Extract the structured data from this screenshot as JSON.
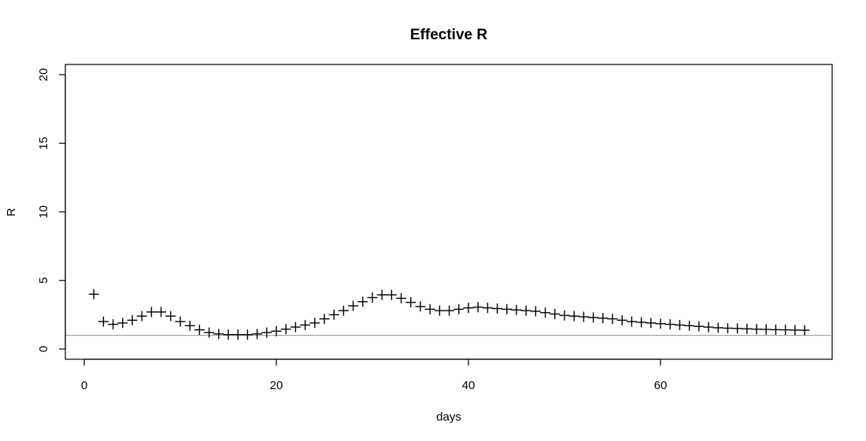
{
  "chart_data": {
    "type": "scatter",
    "title": "Effective R",
    "xlabel": "days",
    "ylabel": "R",
    "xlim": [
      1,
      75
    ],
    "ylim": [
      0,
      20
    ],
    "xticks": [
      0,
      20,
      40,
      60
    ],
    "yticks": [
      0,
      5,
      10,
      15,
      20
    ],
    "marker": "plus",
    "reference_line": {
      "y": 1,
      "color": "#a0a0a0"
    },
    "series": [
      {
        "x": [
          1,
          2,
          3,
          4,
          5,
          6,
          7,
          8,
          9,
          10,
          11,
          12,
          13,
          14,
          15,
          16,
          17,
          18,
          19,
          20,
          21,
          22,
          23,
          24,
          25,
          26,
          27,
          28,
          29,
          30,
          31,
          32,
          33,
          34,
          35,
          36,
          37,
          38,
          39,
          40,
          41,
          42,
          43,
          44,
          45,
          46,
          47,
          48,
          49,
          50,
          51,
          52,
          53,
          54,
          55,
          56,
          57,
          58,
          59,
          60,
          61,
          62,
          63,
          64,
          65,
          66,
          67,
          68,
          69,
          70,
          71,
          72,
          73,
          74,
          75
        ],
        "values": [
          4.0,
          2.0,
          1.8,
          1.9,
          2.1,
          2.4,
          2.7,
          2.7,
          2.4,
          2.0,
          1.7,
          1.4,
          1.2,
          1.1,
          1.05,
          1.05,
          1.05,
          1.1,
          1.2,
          1.3,
          1.45,
          1.6,
          1.75,
          1.9,
          2.2,
          2.5,
          2.8,
          3.15,
          3.45,
          3.75,
          3.95,
          3.95,
          3.7,
          3.4,
          3.1,
          2.9,
          2.8,
          2.8,
          2.9,
          3.0,
          3.05,
          3.0,
          2.95,
          2.9,
          2.85,
          2.8,
          2.75,
          2.65,
          2.55,
          2.45,
          2.4,
          2.35,
          2.3,
          2.25,
          2.2,
          2.1,
          2.0,
          1.95,
          1.9,
          1.85,
          1.8,
          1.75,
          1.7,
          1.65,
          1.6,
          1.55,
          1.52,
          1.5,
          1.47,
          1.45,
          1.43,
          1.41,
          1.4,
          1.38,
          1.37
        ]
      }
    ]
  }
}
